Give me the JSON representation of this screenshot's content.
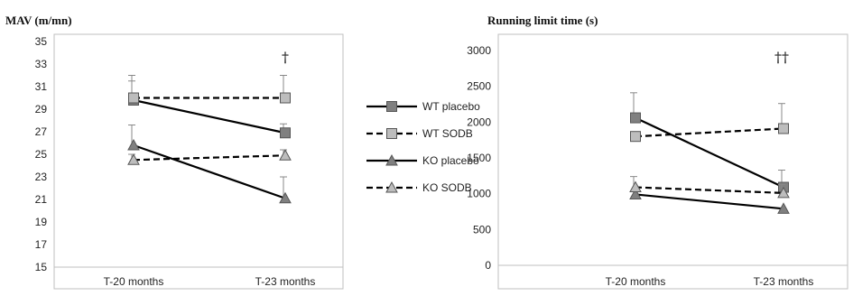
{
  "chart_data": [
    {
      "type": "line",
      "title": "MAV (m/mn)",
      "categories": [
        "T-20 months",
        "T-23 months"
      ],
      "ylim": [
        15,
        35
      ],
      "yticks": [
        15,
        17,
        19,
        21,
        23,
        25,
        27,
        29,
        31,
        33,
        35
      ],
      "annotation": "†",
      "series": [
        {
          "name": "WT placebo",
          "values": [
            29.8,
            26.9
          ],
          "errors": [
            1.7,
            0.8
          ],
          "marker": "square",
          "fill": "#808080",
          "dash": "solid"
        },
        {
          "name": "WT SODB",
          "values": [
            30.0,
            30.0
          ],
          "errors": [
            2.0,
            2.0
          ],
          "marker": "square",
          "fill": "#bdbdbd",
          "dash": "dashed"
        },
        {
          "name": "KO placebo",
          "values": [
            25.8,
            21.1
          ],
          "errors": [
            1.8,
            1.9
          ],
          "marker": "triangle",
          "fill": "#808080",
          "dash": "solid"
        },
        {
          "name": "KO SODB",
          "values": [
            24.5,
            24.9
          ],
          "errors": [
            0.5,
            0.5
          ],
          "marker": "triangle",
          "fill": "#bdbdbd",
          "dash": "dashed"
        }
      ]
    },
    {
      "type": "line",
      "title": "Running limit time (s)",
      "categories": [
        "T-20 months",
        "T-23 months"
      ],
      "ylim": [
        0,
        3000
      ],
      "yticks": [
        0,
        500,
        1000,
        1500,
        2000,
        2500,
        3000
      ],
      "annotation": "††",
      "series": [
        {
          "name": "WT placebo",
          "values": [
            2060,
            1090
          ],
          "errors": [
            350,
            240
          ],
          "marker": "square",
          "fill": "#808080",
          "dash": "solid"
        },
        {
          "name": "WT SODB",
          "values": [
            1800,
            1910
          ],
          "errors": [
            0,
            350
          ],
          "marker": "square",
          "fill": "#bdbdbd",
          "dash": "dashed"
        },
        {
          "name": "KO placebo",
          "values": [
            990,
            790
          ],
          "errors": [
            0,
            0
          ],
          "marker": "triangle",
          "fill": "#808080",
          "dash": "solid"
        },
        {
          "name": "KO SODB",
          "values": [
            1090,
            1010
          ],
          "errors": [
            150,
            120
          ],
          "marker": "triangle",
          "fill": "#bdbdbd",
          "dash": "dashed"
        }
      ]
    }
  ],
  "legend": {
    "entries": [
      "WT placebo",
      "WT SODB",
      "KO placebo",
      "KO SODB"
    ]
  }
}
